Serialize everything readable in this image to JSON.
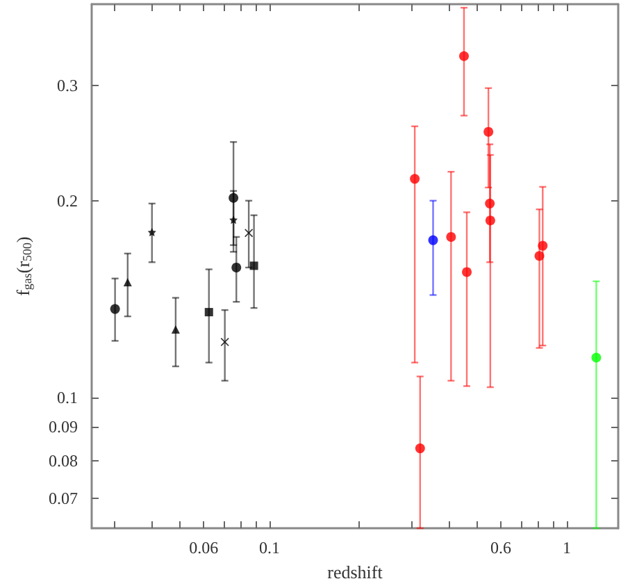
{
  "chart_data": {
    "type": "scatter",
    "xlabel": "redshift",
    "ylabel": "f$_{gas}$(r$_{500}$)",
    "log": "xy",
    "grid": false,
    "xlim": [
      0.0252,
      1.49
    ],
    "ylim": [
      0.063,
      0.4
    ],
    "xticks": [
      {
        "value": 0.03,
        "label": null
      },
      {
        "value": 0.04,
        "label": null
      },
      {
        "value": 0.05,
        "label": null
      },
      0.06,
      {
        "value": 0.07,
        "label": null
      },
      {
        "value": 0.08,
        "label": null
      },
      {
        "value": 0.09,
        "label": null
      },
      0.1,
      {
        "value": 0.2,
        "label": null
      },
      {
        "value": 0.3,
        "label": null
      },
      {
        "value": 0.4,
        "label": null
      },
      {
        "value": 0.5,
        "label": null
      },
      0.6,
      {
        "value": 0.7,
        "label": null
      },
      {
        "value": 0.8,
        "label": null
      },
      {
        "value": 0.9,
        "label": null
      },
      1
    ],
    "yticks": [
      0.07,
      0.08,
      0.09,
      0.1,
      0.2,
      0.3
    ],
    "series": [
      {
        "color": "#000000",
        "marker": "circle",
        "x": [
          0.0302,
          0.0756,
          0.0773
        ],
        "values": [
          0.1365,
          0.202,
          0.158
        ],
        "errors": [
          [
            0.122,
            0.152
          ],
          [
            0.167,
            0.246
          ],
          [
            0.14,
            0.176
          ]
        ]
      },
      {
        "color": "#000000",
        "marker": "triangle",
        "x": [
          0.0333,
          0.0483
        ],
        "values": [
          0.15,
          0.127
        ],
        "errors": [
          [
            0.133,
            0.166
          ],
          [
            0.1115,
            0.142
          ]
        ]
      },
      {
        "color": "#000000",
        "marker": "star",
        "x": [
          0.0402,
          0.0756
        ],
        "values": [
          0.179,
          0.187
        ],
        "errors": [
          [
            0.161,
            0.198
          ],
          [
            0.171,
            0.207
          ]
        ]
      },
      {
        "color": "#000000",
        "marker": "square",
        "x": [
          0.0625,
          0.0886
        ],
        "values": [
          0.135,
          0.159
        ],
        "errors": [
          [
            0.113,
            0.157
          ],
          [
            0.137,
            0.19
          ]
        ]
      },
      {
        "color": "#000000",
        "marker": "cross",
        "x": [
          0.0707,
          0.0851
        ],
        "values": [
          0.1215,
          0.1785
        ],
        "errors": [
          [
            0.106,
            0.136
          ],
          [
            0.158,
            0.2
          ]
        ]
      },
      {
        "color": "#ff0000",
        "marker": "circle",
        "x": [
          0.308,
          0.321,
          0.408,
          0.451,
          0.461,
          0.545,
          0.551,
          0.553,
          0.809,
          0.83
        ],
        "values": [
          0.216,
          0.0835,
          0.176,
          0.333,
          0.1555,
          0.255,
          0.198,
          0.1865,
          0.1646,
          0.1706
        ],
        "errors": [
          [
            0.113,
            0.26
          ],
          [
            0.063,
            0.1076
          ],
          [
            0.106,
            0.2215
          ],
          [
            0.27,
            0.395
          ],
          [
            0.104,
            0.192
          ],
          [
            0.2095,
            0.2975
          ],
          [
            0.161,
            0.244
          ],
          [
            0.1036,
            0.235
          ],
          [
            0.119,
            0.194
          ],
          [
            0.12,
            0.21
          ]
        ]
      },
      {
        "color": "#0000ff",
        "marker": "circle",
        "x": [
          0.355
        ],
        "values": [
          0.174
        ],
        "errors": [
          [
            0.1434,
            0.2
          ]
        ]
      },
      {
        "color": "#00ff00",
        "marker": "circle",
        "x": [
          1.257
        ],
        "values": [
          0.115
        ],
        "errors": [
          [
            0.063,
            0.1505
          ]
        ]
      }
    ]
  }
}
